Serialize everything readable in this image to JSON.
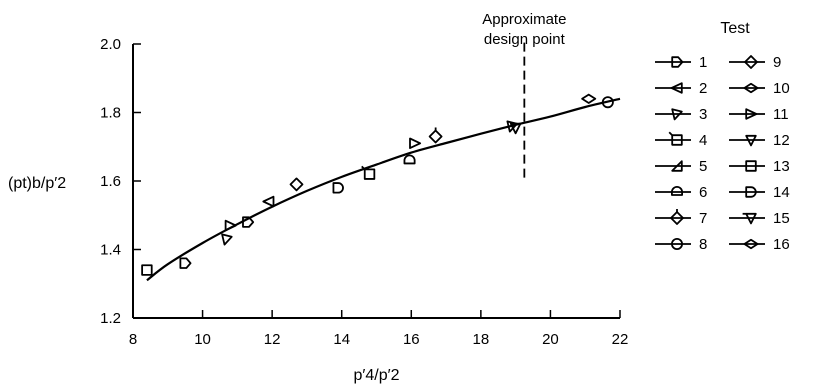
{
  "chart_data": {
    "type": "scatter",
    "xlabel": "p′4/p′2",
    "ylabel": "(pt)b/p′2",
    "xlim": [
      8,
      22
    ],
    "ylim": [
      1.2,
      2.0
    ],
    "x_ticks": [
      "8",
      "10",
      "12",
      "14",
      "16",
      "18",
      "20",
      "22"
    ],
    "y_ticks": [
      "1.2",
      "1.4",
      "1.6",
      "1.8",
      "2.0"
    ],
    "grid": false,
    "annotation": {
      "lines": [
        "Approximate",
        "design point"
      ],
      "x": 19.25,
      "y_range": [
        1.61,
        2.0
      ]
    },
    "legend": {
      "title": "Test",
      "position": "right",
      "entries": [
        {
          "label": "1",
          "marker": "pennant-right"
        },
        {
          "label": "2",
          "marker": "triangle-left"
        },
        {
          "label": "3",
          "marker": "triangle-down-left"
        },
        {
          "label": "4",
          "marker": "square-flag"
        },
        {
          "label": "5",
          "marker": "triangle-flag"
        },
        {
          "label": "6",
          "marker": "half-circle-flag"
        },
        {
          "label": "7",
          "marker": "diamond-flag"
        },
        {
          "label": "8",
          "marker": "circle"
        },
        {
          "label": "9",
          "marker": "diamond"
        },
        {
          "label": "10",
          "marker": "diamond-flat"
        },
        {
          "label": "11",
          "marker": "triangle-right"
        },
        {
          "label": "12",
          "marker": "triangle-down"
        },
        {
          "label": "13",
          "marker": "square"
        },
        {
          "label": "14",
          "marker": "d-shape"
        },
        {
          "label": "15",
          "marker": "triangle-down-flag"
        },
        {
          "label": "16",
          "marker": "diamond-flat"
        }
      ]
    },
    "series": [
      {
        "label": "1",
        "marker": "pennant-right",
        "x": 9.5,
        "y": 1.36
      },
      {
        "label": "13",
        "marker": "square",
        "x": 8.4,
        "y": 1.34
      },
      {
        "label": "3",
        "marker": "triangle-down-left",
        "x": 10.7,
        "y": 1.43
      },
      {
        "label": "11",
        "marker": "triangle-right",
        "x": 10.8,
        "y": 1.47
      },
      {
        "label": "1",
        "marker": "pennant-right",
        "x": 11.3,
        "y": 1.48
      },
      {
        "label": "2",
        "marker": "triangle-left",
        "x": 11.9,
        "y": 1.54
      },
      {
        "label": "9",
        "marker": "diamond",
        "x": 12.7,
        "y": 1.59
      },
      {
        "label": "14",
        "marker": "d-shape",
        "x": 13.9,
        "y": 1.58
      },
      {
        "label": "4",
        "marker": "square-flag",
        "x": 14.8,
        "y": 1.62
      },
      {
        "label": "6",
        "marker": "half-circle-flag",
        "x": 15.95,
        "y": 1.66
      },
      {
        "label": "11",
        "marker": "triangle-right",
        "x": 16.1,
        "y": 1.71
      },
      {
        "label": "7",
        "marker": "diamond-flag",
        "x": 16.7,
        "y": 1.73
      },
      {
        "label": "3",
        "marker": "triangle-down-left",
        "x": 18.9,
        "y": 1.76
      },
      {
        "label": "12",
        "marker": "triangle-down",
        "x": 19.0,
        "y": 1.755
      },
      {
        "label": "10",
        "marker": "diamond-flat",
        "x": 21.1,
        "y": 1.84
      },
      {
        "label": "8",
        "marker": "circle",
        "x": 21.65,
        "y": 1.83
      }
    ],
    "fit_curve": {
      "x": [
        8.4,
        9,
        10,
        11,
        12,
        13,
        14,
        15,
        16,
        17,
        18,
        19,
        20,
        21,
        22
      ],
      "y": [
        1.31,
        1.357,
        1.419,
        1.474,
        1.525,
        1.571,
        1.612,
        1.648,
        1.683,
        1.711,
        1.738,
        1.764,
        1.788,
        1.816,
        1.84
      ]
    }
  }
}
